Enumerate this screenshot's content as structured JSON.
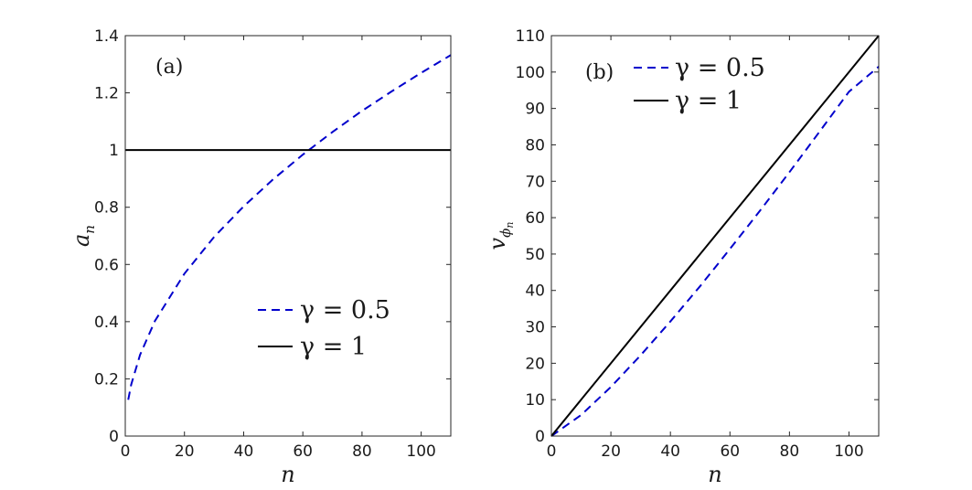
{
  "chart_data": [
    {
      "type": "line",
      "panel_label": "(a)",
      "xlabel": "n",
      "ylabel_main": "a",
      "ylabel_sub": "n",
      "xlim": [
        0,
        110
      ],
      "ylim": [
        0,
        1.4
      ],
      "xticks": [
        0,
        20,
        40,
        60,
        80,
        100
      ],
      "yticks": [
        0,
        0.2,
        0.4,
        0.6,
        0.8,
        1,
        1.2,
        1.4
      ],
      "ytick_labels": [
        "0",
        "0.2",
        "0.4",
        "0.6",
        "0.8",
        "1",
        "1.2",
        "1.4"
      ],
      "legend": {
        "position": "lower-right",
        "items": [
          "γ = 0.5",
          "γ = 1"
        ]
      },
      "series": [
        {
          "name": "γ = 0.5",
          "color": "#0000cc",
          "dash": "dashed",
          "x": [
            1,
            2,
            5,
            10,
            20,
            30,
            40,
            50,
            60,
            70,
            80,
            90,
            100,
            110
          ],
          "y": [
            0.127,
            0.18,
            0.284,
            0.402,
            0.568,
            0.696,
            0.803,
            0.898,
            0.984,
            1.063,
            1.137,
            1.205,
            1.27,
            1.332
          ]
        },
        {
          "name": "γ = 1",
          "color": "#000000",
          "dash": "solid",
          "x": [
            0,
            110
          ],
          "y": [
            1,
            1
          ]
        }
      ]
    },
    {
      "type": "line",
      "panel_label": "(b)",
      "xlabel": "n",
      "ylabel_main": "v",
      "ylabel_sub": "ϕ",
      "ylabel_subsub": "n",
      "xlim": [
        0,
        110
      ],
      "ylim": [
        0,
        110
      ],
      "xticks": [
        0,
        20,
        40,
        60,
        80,
        100
      ],
      "yticks": [
        0,
        10,
        20,
        30,
        40,
        50,
        60,
        70,
        80,
        90,
        100,
        110
      ],
      "ytick_labels": [
        "0",
        "10",
        "20",
        "30",
        "40",
        "50",
        "60",
        "70",
        "80",
        "90",
        "100",
        "110"
      ],
      "legend": {
        "position": "top-left",
        "items": [
          "γ = 0.5",
          "γ = 1"
        ]
      },
      "series": [
        {
          "name": "γ = 0.5",
          "color": "#0000cc",
          "dash": "dashed",
          "x": [
            0,
            10,
            20,
            30,
            40,
            50,
            60,
            70,
            80,
            90,
            100,
            110
          ],
          "y": [
            0,
            5.8,
            13.5,
            22.2,
            31.5,
            41.2,
            51.4,
            61.8,
            72.5,
            83.5,
            94.6,
            101.5
          ]
        },
        {
          "name": "γ = 1",
          "color": "#000000",
          "dash": "solid",
          "x": [
            0,
            110
          ],
          "y": [
            0,
            110
          ]
        }
      ]
    }
  ]
}
